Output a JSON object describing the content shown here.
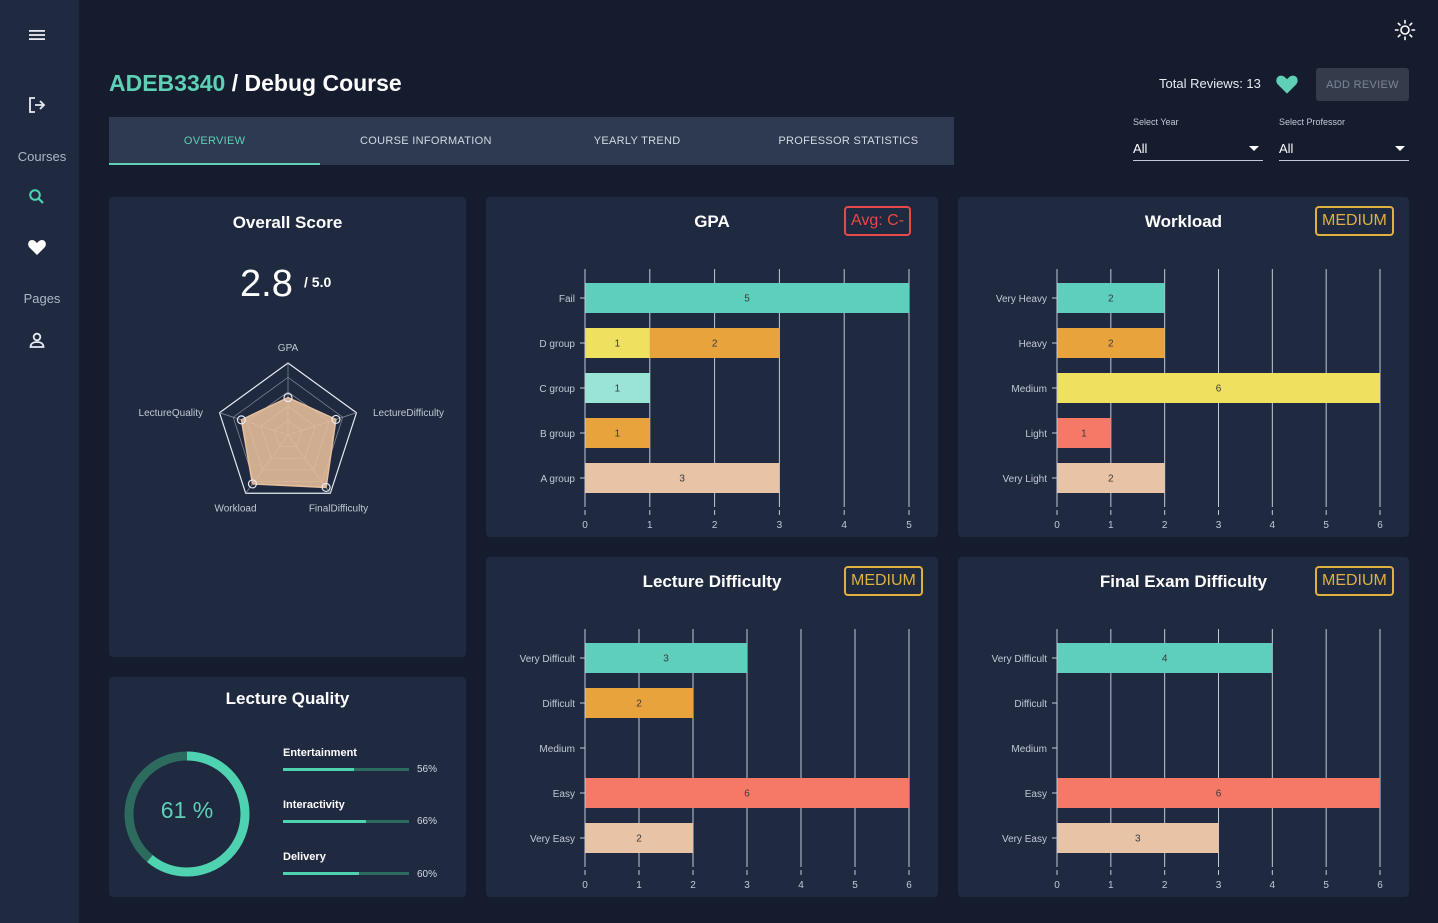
{
  "sidebar": {
    "menu_icon": "menu-icon",
    "logout_icon": "logout-icon",
    "courses_label": "Courses",
    "pages_label": "Pages"
  },
  "header": {
    "course_code": "ADEB3340",
    "separator": " / ",
    "course_name": "Debug Course",
    "total_reviews_label": "Total Reviews: 13",
    "add_review_label": "ADD REVIEW"
  },
  "tabs": [
    {
      "label": "OVERVIEW",
      "active": true
    },
    {
      "label": "COURSE INFORMATION",
      "active": false
    },
    {
      "label": "YEARLY TREND",
      "active": false
    },
    {
      "label": "PROFESSOR STATISTICS",
      "active": false
    }
  ],
  "filters": {
    "year": {
      "label": "Select Year",
      "value": "All"
    },
    "professor": {
      "label": "Select Professor",
      "value": "All"
    }
  },
  "overall": {
    "title": "Overall Score",
    "score": "2.8",
    "max": "/ 5.0",
    "radar_axes": [
      "GPA",
      "LectureDifficulty",
      "FinalDifficulty",
      "Workload",
      "LectureQuality"
    ],
    "radar_values": [
      2.6,
      3.5,
      4.5,
      4.2,
      3.4
    ],
    "radar_max": 5
  },
  "lecture_quality": {
    "title": "Lecture Quality",
    "overall_value": 61,
    "overall_label": "61 %",
    "metrics": [
      {
        "label": "Entertainment",
        "value": 56,
        "pct": "56%"
      },
      {
        "label": "Interactivity",
        "value": 66,
        "pct": "66%"
      },
      {
        "label": "Delivery",
        "value": 60,
        "pct": "60%"
      }
    ]
  },
  "colors": {
    "teal": "#5fcfbd",
    "orange": "#e8a33d",
    "yellow": "#f0e060",
    "light_teal": "#99e4d6",
    "salmon": "#f57966",
    "peach": "#e8c3a5",
    "avg_red": "#e84848",
    "medium_gold": "#e0b040",
    "accent": "#5fcfb5"
  },
  "chart_data": [
    {
      "id": "gpa",
      "type": "bar",
      "title": "GPA",
      "badge": "Avg: C-",
      "badge_color": "#e84848",
      "categories": [
        "Fail",
        "D group",
        "C group",
        "B group",
        "A group"
      ],
      "segments": [
        [
          {
            "value": 5,
            "color": "#5fcfbd"
          }
        ],
        [
          {
            "value": 1,
            "color": "#f0e060"
          },
          {
            "value": 2,
            "color": "#e8a33d"
          }
        ],
        [
          {
            "value": 1,
            "color": "#99e4d6"
          }
        ],
        [
          {
            "value": 1,
            "color": "#e8a33d"
          }
        ],
        [
          {
            "value": 3,
            "color": "#e8c3a5"
          }
        ]
      ],
      "xlim": [
        0,
        5
      ],
      "ticks": [
        0,
        1,
        2,
        3,
        4,
        5
      ]
    },
    {
      "id": "workload",
      "type": "bar",
      "title": "Workload",
      "badge": "MEDIUM",
      "badge_color": "#e0b040",
      "categories": [
        "Very Heavy",
        "Heavy",
        "Medium",
        "Light",
        "Very Light"
      ],
      "segments": [
        [
          {
            "value": 2,
            "color": "#5fcfbd"
          }
        ],
        [
          {
            "value": 2,
            "color": "#e8a33d"
          }
        ],
        [
          {
            "value": 6,
            "color": "#f0e060"
          }
        ],
        [
          {
            "value": 1,
            "color": "#f57966"
          }
        ],
        [
          {
            "value": 2,
            "color": "#e8c3a5"
          }
        ]
      ],
      "xlim": [
        0,
        6
      ],
      "ticks": [
        0,
        1,
        2,
        3,
        4,
        5,
        6
      ]
    },
    {
      "id": "lecture_difficulty",
      "type": "bar",
      "title": "Lecture Difficulty",
      "badge": "MEDIUM",
      "badge_color": "#e0b040",
      "categories": [
        "Very Difficult",
        "Difficult",
        "Medium",
        "Easy",
        "Very Easy"
      ],
      "segments": [
        [
          {
            "value": 3,
            "color": "#5fcfbd"
          }
        ],
        [
          {
            "value": 2,
            "color": "#e8a33d"
          }
        ],
        [],
        [
          {
            "value": 6,
            "color": "#f57966"
          }
        ],
        [
          {
            "value": 2,
            "color": "#e8c3a5"
          }
        ]
      ],
      "xlim": [
        0,
        6
      ],
      "ticks": [
        0,
        1,
        2,
        3,
        4,
        5,
        6
      ]
    },
    {
      "id": "final_difficulty",
      "type": "bar",
      "title": "Final Exam Difficulty",
      "badge": "MEDIUM",
      "badge_color": "#e0b040",
      "categories": [
        "Very Difficult",
        "Difficult",
        "Medium",
        "Easy",
        "Very Easy"
      ],
      "segments": [
        [
          {
            "value": 4,
            "color": "#5fcfbd"
          }
        ],
        [],
        [],
        [
          {
            "value": 6,
            "color": "#f57966"
          }
        ],
        [
          {
            "value": 3,
            "color": "#e8c3a5"
          }
        ]
      ],
      "xlim": [
        0,
        6
      ],
      "ticks": [
        0,
        1,
        2,
        3,
        4,
        5,
        6
      ]
    }
  ]
}
